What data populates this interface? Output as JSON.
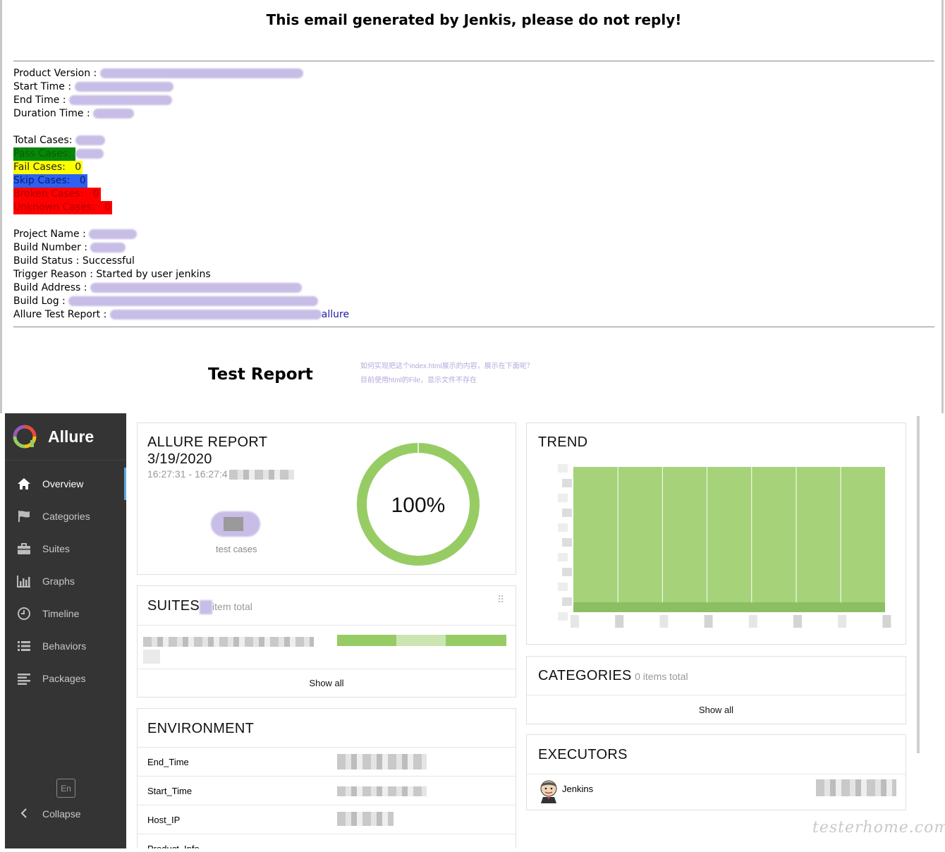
{
  "email": {
    "heading": "This email generated by Jenkis, please do not reply!",
    "product_version_label": "Product Version :",
    "start_time_label": "Start Time :",
    "end_time_label": "End Time :",
    "duration_time_label": "Duration Time :",
    "total_cases_label": "Total Cases:",
    "pass_label": "Pass  Cases:",
    "fail_label": "Fail   Cases:",
    "fail_value": "0",
    "skip_label": "Skip  Cases:",
    "skip_value": "0",
    "broken_label": "Broken Cases:",
    "broken_value": "0",
    "unknown_label": "Unknown Cases:",
    "unknown_value": "0",
    "project_name_label": "Project Name :",
    "build_number_label": "Build Number :",
    "build_status": "Build Status : Successful",
    "trigger_reason": "Trigger Reason : Started by user jenkins",
    "build_address_label": "Build Address :",
    "build_log_label": "Build Log :",
    "allure_report_label": "Allure Test Report :",
    "allure_link_text": "allure",
    "colors": {
      "pass": "#078707",
      "fail": "#ffff00",
      "skip": "#2e61f2",
      "broken": "#ff0000",
      "unknown": "#ff0000",
      "redaction": "#c7bde6"
    }
  },
  "report_title": "Test Report",
  "question": {
    "line1": "如何实现把这个index.html展示的内容，展示在下面呢？",
    "line2": "目前使用html的File，显示文件不存在"
  },
  "allure": {
    "brand": "Allure",
    "nav": [
      {
        "label": "Overview",
        "icon": "home-icon",
        "active": true
      },
      {
        "label": "Categories",
        "icon": "flag-icon",
        "active": false
      },
      {
        "label": "Suites",
        "icon": "briefcase-icon",
        "active": false
      },
      {
        "label": "Graphs",
        "icon": "bar-chart-icon",
        "active": false
      },
      {
        "label": "Timeline",
        "icon": "clock-icon",
        "active": false
      },
      {
        "label": "Behaviors",
        "icon": "list-icon",
        "active": false
      },
      {
        "label": "Packages",
        "icon": "align-left-icon",
        "active": false
      }
    ],
    "language_button": "En",
    "collapse_label": "Collapse",
    "summary": {
      "title": "ALLURE REPORT",
      "date": "3/19/2020",
      "time_range": "16:27:31 - 16:27:4",
      "test_cases_label": "test cases",
      "percent": "100%",
      "pass_fraction": 1.0,
      "ring_color": "#97cc64"
    },
    "suites": {
      "title": "SUITES",
      "subtitle": "item total",
      "show_all": "Show all"
    },
    "environment": {
      "title": "ENVIRONMENT",
      "rows": [
        {
          "key": "End_Time"
        },
        {
          "key": "Start_Time"
        },
        {
          "key": "Host_IP"
        },
        {
          "key": "Product_Info"
        }
      ]
    },
    "trend": {
      "title": "TREND",
      "bar_color": "#a6d27a"
    },
    "categories": {
      "title": "CATEGORIES",
      "subtitle": "0 items total",
      "show_all": "Show all"
    },
    "executors": {
      "title": "EXECUTORS",
      "name": "Jenkins"
    }
  },
  "watermark": "testerhome.com"
}
